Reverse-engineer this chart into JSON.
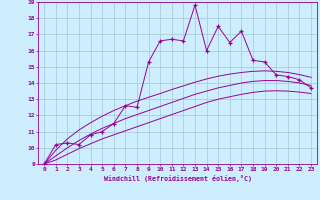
{
  "xlabel": "Windchill (Refroidissement éolien,°C)",
  "bg_color": "#cceeff",
  "grid_color": "#aaccdd",
  "line_color": "#990099",
  "xlim": [
    -0.5,
    23.5
  ],
  "ylim": [
    9,
    19
  ],
  "xticks": [
    0,
    1,
    2,
    3,
    4,
    5,
    6,
    7,
    8,
    9,
    10,
    11,
    12,
    13,
    14,
    15,
    16,
    17,
    18,
    19,
    20,
    21,
    22,
    23
  ],
  "yticks": [
    9,
    10,
    11,
    12,
    13,
    14,
    15,
    16,
    17,
    18,
    19
  ],
  "jagged_x": [
    0,
    1,
    2,
    3,
    4,
    5,
    6,
    7,
    8,
    9,
    10,
    11,
    12,
    13,
    14,
    15,
    16,
    17,
    18,
    19,
    20,
    21,
    22,
    23
  ],
  "jagged_y": [
    9.0,
    10.2,
    10.3,
    10.2,
    10.8,
    11.0,
    11.5,
    12.6,
    12.5,
    15.3,
    16.6,
    16.7,
    16.6,
    18.8,
    16.0,
    17.5,
    16.5,
    17.2,
    15.4,
    15.3,
    14.5,
    14.4,
    14.2,
    13.7
  ],
  "smooth1_x": [
    0,
    1,
    2,
    3,
    4,
    5,
    6,
    7,
    8,
    9,
    10,
    11,
    12,
    13,
    14,
    15,
    16,
    17,
    18,
    19,
    20,
    21,
    22,
    23
  ],
  "smooth1_y": [
    9.0,
    9.25,
    9.6,
    9.95,
    10.25,
    10.55,
    10.8,
    11.05,
    11.3,
    11.55,
    11.8,
    12.05,
    12.3,
    12.55,
    12.8,
    13.0,
    13.15,
    13.3,
    13.42,
    13.5,
    13.52,
    13.5,
    13.44,
    13.35
  ],
  "smooth2_x": [
    0,
    1,
    2,
    3,
    4,
    5,
    6,
    7,
    8,
    9,
    10,
    11,
    12,
    13,
    14,
    15,
    16,
    17,
    18,
    19,
    20,
    21,
    22,
    23
  ],
  "smooth2_y": [
    9.0,
    9.5,
    10.0,
    10.45,
    10.85,
    11.2,
    11.5,
    11.8,
    12.05,
    12.3,
    12.55,
    12.8,
    13.05,
    13.3,
    13.5,
    13.7,
    13.85,
    14.0,
    14.1,
    14.15,
    14.15,
    14.1,
    14.0,
    13.85
  ],
  "smooth3_x": [
    0,
    1,
    2,
    3,
    4,
    5,
    6,
    7,
    8,
    9,
    10,
    11,
    12,
    13,
    14,
    15,
    16,
    17,
    18,
    19,
    20,
    21,
    22,
    23
  ],
  "smooth3_y": [
    9.0,
    9.85,
    10.55,
    11.1,
    11.55,
    11.95,
    12.3,
    12.6,
    12.88,
    13.12,
    13.35,
    13.6,
    13.82,
    14.05,
    14.25,
    14.42,
    14.55,
    14.65,
    14.72,
    14.75,
    14.72,
    14.65,
    14.52,
    14.35
  ]
}
